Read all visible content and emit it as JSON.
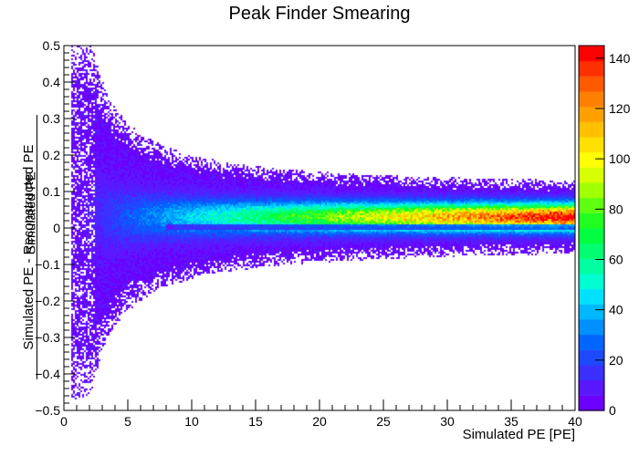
{
  "chart_data": {
    "type": "heatmap",
    "title": "Peak Finder Smearing",
    "xlabel": "Simulated PE [PE]",
    "ylabel_numerator": "Simulated PE - Reconstructed PE",
    "ylabel_denominator": "Simulated PE",
    "xlim": [
      0,
      40
    ],
    "ylim": [
      -0.5,
      0.5
    ],
    "x_ticks": [
      "0",
      "5",
      "10",
      "15",
      "20",
      "25",
      "30",
      "35",
      "40"
    ],
    "y_ticks": [
      "−0.5",
      "−0.4",
      "−0.3",
      "−0.2",
      "−0.1",
      "0",
      "0.1",
      "0.2",
      "0.3",
      "0.4",
      "0.5"
    ],
    "z_range": [
      0,
      145
    ],
    "z_ticks": [
      "0",
      "20",
      "40",
      "60",
      "80",
      "100",
      "120",
      "140"
    ],
    "palette": [
      "#6b00ff",
      "#5a18ff",
      "#3a30ff",
      "#1d4aff",
      "#0066ff",
      "#0090ff",
      "#00b8ff",
      "#00e0ff",
      "#00ffd0",
      "#00ffa0",
      "#00ff70",
      "#00ff40",
      "#20ff20",
      "#60ff10",
      "#a0ff00",
      "#d8ff00",
      "#ffff00",
      "#ffe000",
      "#ffc000",
      "#ffa000",
      "#ff8000",
      "#ff5a00",
      "#ff3000",
      "#ff0000"
    ],
    "band": {
      "center_y": 0.03,
      "center_x_range": [
        5,
        40
      ],
      "core_halfwidth_y_at_x40": 0.04,
      "spread_halfwidth_y_at_x2": 0.5,
      "peak_count": 140
    }
  }
}
